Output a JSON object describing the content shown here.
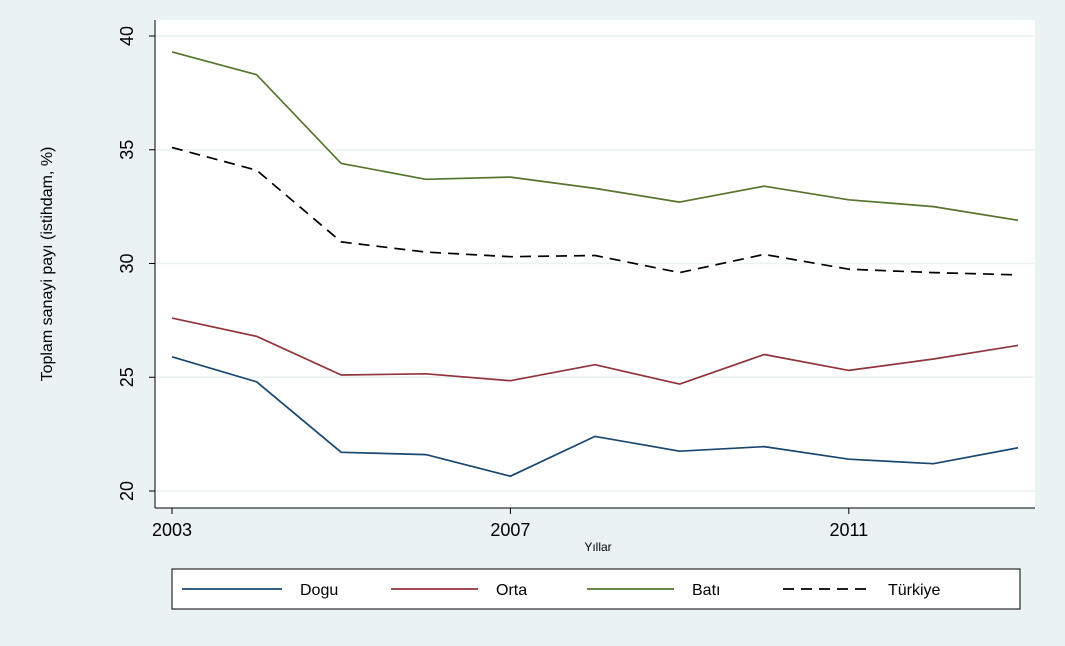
{
  "chart_data": {
    "type": "line",
    "title": "",
    "xlabel": "Yıllar",
    "ylabel": "Toplam sanayi payı (istihdam, %)",
    "x": [
      2003,
      2004,
      2005,
      2006,
      2007,
      2008,
      2009,
      2010,
      2011,
      2012,
      2013
    ],
    "xticks": [
      2003,
      2007,
      2011
    ],
    "xtick_labels": [
      "2003",
      "2007",
      "2011"
    ],
    "xlim": [
      2003,
      2013
    ],
    "yticks": [
      20,
      25,
      30,
      35,
      40
    ],
    "ytick_labels": [
      "20",
      "25",
      "30",
      "35",
      "40"
    ],
    "ylim": [
      20,
      40
    ],
    "grid": true,
    "legend_position": "bottom",
    "series": [
      {
        "name": "Dogu",
        "color": "#1a476f",
        "dash": "solid",
        "values": [
          25.9,
          24.8,
          21.7,
          21.6,
          20.65,
          22.4,
          21.75,
          21.95,
          21.4,
          21.2,
          21.9
        ]
      },
      {
        "name": "Orta",
        "color": "#90353b",
        "dash": "solid",
        "values": [
          27.6,
          26.8,
          25.1,
          25.15,
          24.85,
          25.55,
          24.7,
          26.0,
          25.3,
          25.8,
          26.4
        ]
      },
      {
        "name": "Batı",
        "color": "#55752f",
        "dash": "solid",
        "values": [
          39.3,
          38.3,
          34.4,
          33.7,
          33.8,
          33.3,
          32.7,
          33.4,
          32.8,
          32.5,
          31.9
        ]
      },
      {
        "name": "Türkiye",
        "color": "#000000",
        "dash": "dashed",
        "values": [
          35.1,
          34.1,
          30.95,
          30.5,
          30.3,
          30.35,
          29.6,
          30.4,
          29.75,
          29.6,
          29.5
        ]
      }
    ]
  }
}
